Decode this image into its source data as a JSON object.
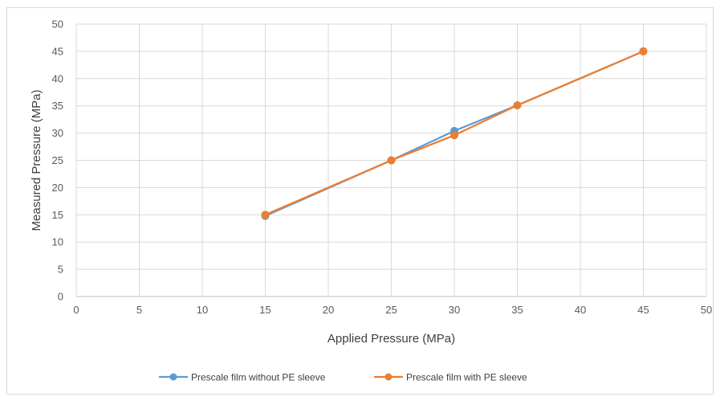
{
  "chart_data": {
    "type": "line",
    "xlabel": "Applied Pressure (MPa)",
    "ylabel": "Measured Pressure (MPa)",
    "xlim": [
      0,
      50
    ],
    "ylim": [
      0,
      50
    ],
    "xticks": [
      0,
      5,
      10,
      15,
      20,
      25,
      30,
      35,
      40,
      45,
      50
    ],
    "yticks": [
      0,
      5,
      10,
      15,
      20,
      25,
      30,
      35,
      40,
      45,
      50
    ],
    "grid": true,
    "legend_position": "bottom",
    "series": [
      {
        "name": "Prescale film without PE sleeve",
        "color": "#5b9bd5",
        "x": [
          15,
          25,
          30,
          35,
          45
        ],
        "y": [
          14.8,
          25.0,
          30.4,
          35.1,
          45.0
        ]
      },
      {
        "name": "Prescale film with PE sleeve",
        "color": "#ed7d31",
        "x": [
          15,
          25,
          30,
          35,
          45
        ],
        "y": [
          15.0,
          25.0,
          29.6,
          35.1,
          45.0
        ]
      }
    ]
  }
}
